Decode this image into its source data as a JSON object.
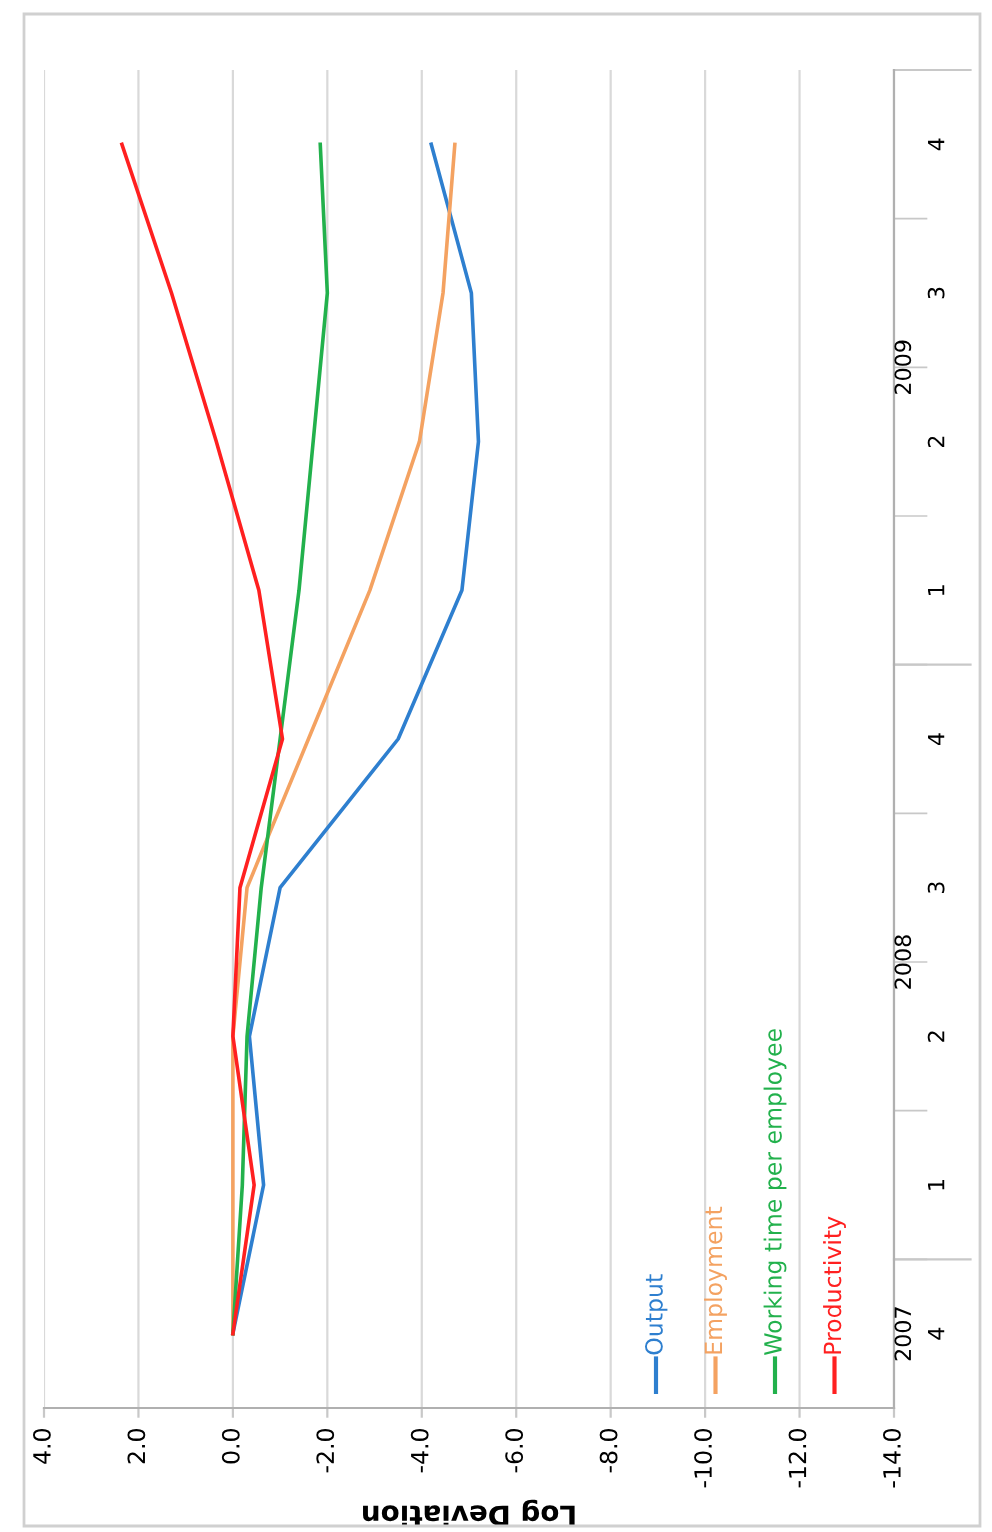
{
  "chart_data": {
    "type": "line",
    "orientation": "horizontal",
    "xlabel": "Log Deviation",
    "categories": [
      "4",
      "3",
      "2",
      "1",
      "4",
      "3",
      "2",
      "1",
      "4"
    ],
    "annotations": [
      "2009",
      "2008",
      "2007"
    ],
    "series": [
      {
        "name": "Output",
        "color": "#2e7fcf",
        "values": [
          -4.2,
          -5.05,
          -5.2,
          -4.85,
          -3.5,
          -1.0,
          -0.35,
          -0.65,
          0
        ]
      },
      {
        "name": "Employment",
        "color": "#f4a261",
        "values": [
          -4.7,
          -4.45,
          -3.95,
          -2.9,
          -1.6,
          -0.3,
          0,
          0,
          0
        ]
      },
      {
        "name": "Working time per employee",
        "color": "#22b14c",
        "values": [
          -1.85,
          -2.0,
          -1.7,
          -1.4,
          -1.0,
          -0.6,
          -0.3,
          -0.2,
          0
        ]
      },
      {
        "name": "Productivity",
        "color": "#ff2020",
        "values": [
          2.35,
          1.3,
          0.35,
          -0.55,
          -1.05,
          -0.15,
          0,
          -0.45,
          0
        ]
      }
    ],
    "xlim": [
      4,
      -14
    ],
    "xticks": [
      {
        "value": 4,
        "label": "4.0"
      },
      {
        "value": 2,
        "label": "2.0"
      },
      {
        "value": 0,
        "label": "0.0"
      },
      {
        "value": -2,
        "label": "-2.0"
      },
      {
        "value": -4,
        "label": "-4.0"
      },
      {
        "value": -6,
        "label": "-6.0"
      },
      {
        "value": -8,
        "label": "-8.0"
      },
      {
        "value": -10,
        "label": "-10.0"
      },
      {
        "value": -12,
        "label": "-12.0"
      },
      {
        "value": -14,
        "label": "-14.0"
      }
    ],
    "grid": "x",
    "legend": "bottom",
    "marker": "none",
    "line_style": "solid"
  }
}
